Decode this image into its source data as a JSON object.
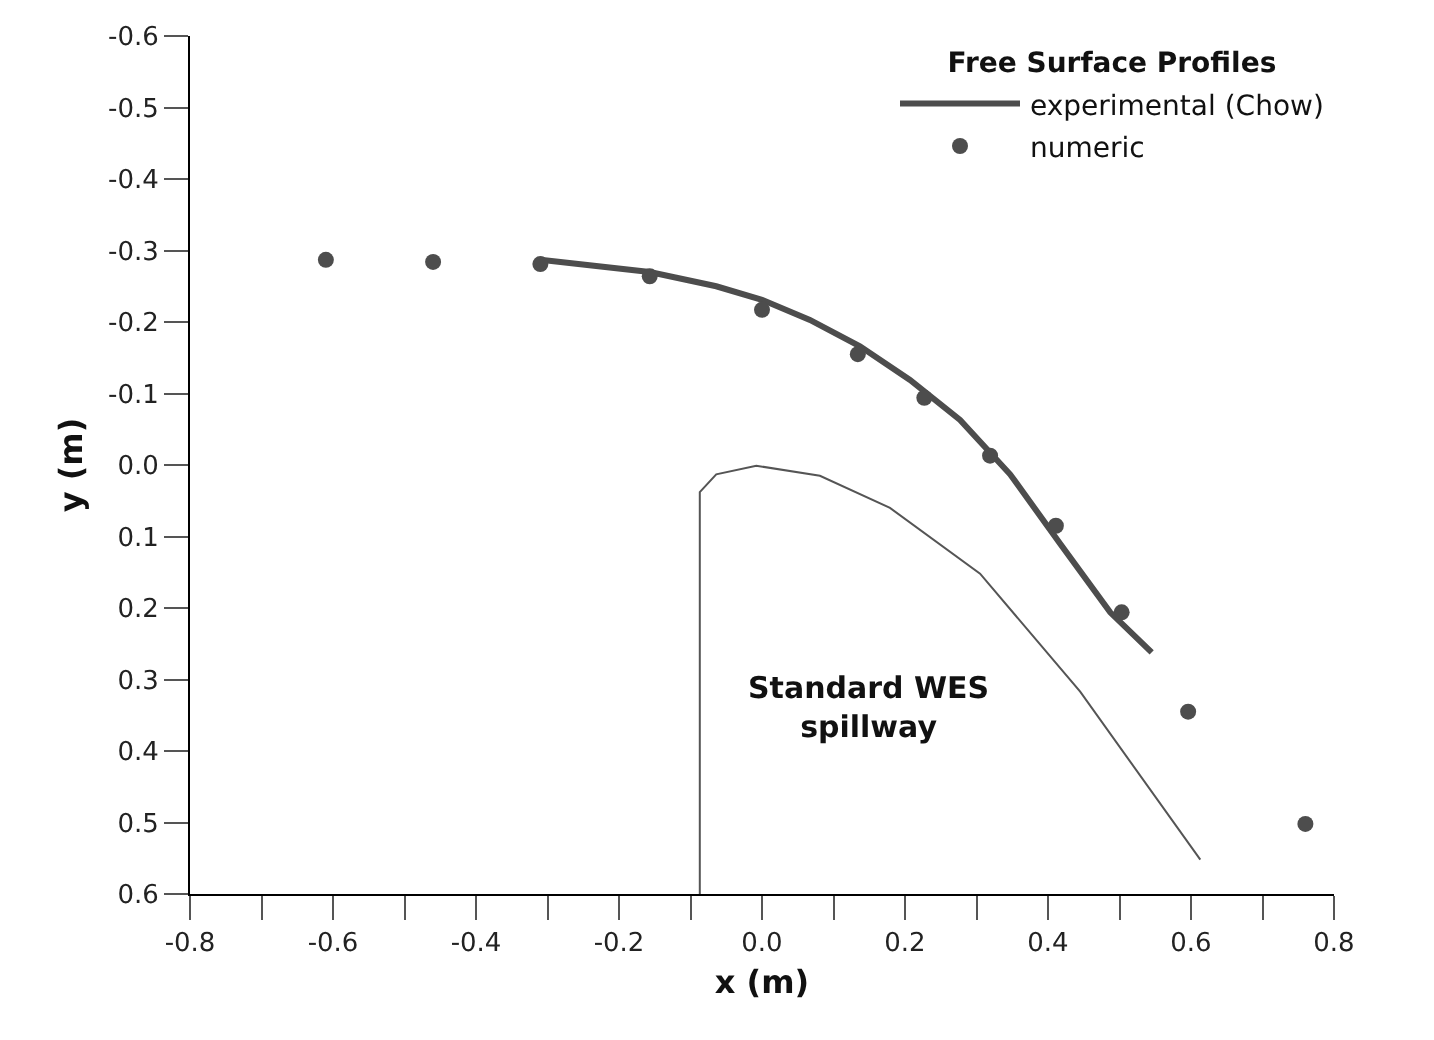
{
  "chart_data": {
    "type": "line",
    "xlabel": "x (m)",
    "ylabel": "y (m)",
    "legend_title": "Free Surface Profiles",
    "legend": "top right",
    "grid": false,
    "xlim": [
      -0.8,
      0.8
    ],
    "xticks": [
      -0.8,
      {
        "value": -0.7,
        "label": null
      },
      -0.6,
      {
        "value": -0.5,
        "label": null
      },
      -0.4,
      {
        "value": -0.3,
        "label": null
      },
      -0.2,
      {
        "value": -0.1,
        "label": null
      },
      {
        "value": 0,
        "label": "0.0"
      },
      {
        "value": 0.1,
        "label": null
      },
      0.2,
      {
        "value": 0.3,
        "label": null
      },
      0.4,
      {
        "value": 0.5,
        "label": null
      },
      0.6,
      {
        "value": 0.7,
        "label": null
      },
      0.8
    ],
    "ylim": [
      0.6,
      -0.6
    ],
    "yticks": [
      -0.6,
      -0.5,
      -0.4,
      -0.3,
      -0.2,
      -0.1,
      {
        "value": 0,
        "label": "0.0"
      },
      0.1,
      0.2,
      0.3,
      0.4,
      0.5,
      0.6
    ],
    "series": [
      {
        "name": "experimental (Chow)",
        "color": "#4d4d4d",
        "x": [
          -0.31,
          -0.157,
          -0.064,
          0,
          0.067,
          0.137,
          0.207,
          0.277,
          0.347,
          0.417,
          0.487,
          0.545
        ],
        "values": [
          -0.287,
          -0.27,
          -0.25,
          -0.231,
          -0.203,
          -0.166,
          -0.119,
          -0.063,
          0.013,
          0.11,
          0.206,
          0.262
        ]
      },
      {
        "name": "numeric",
        "type": "scatter",
        "color": "#4d4d4d",
        "marker": "circle",
        "x": [
          -0.61,
          -0.46,
          -0.31,
          -0.157,
          0,
          0.134,
          0.227,
          0.319,
          0.411,
          0.503,
          0.596,
          0.76
        ],
        "values": [
          -0.287,
          -0.284,
          -0.281,
          -0.264,
          -0.217,
          -0.155,
          -0.094,
          -0.013,
          0.085,
          0.206,
          0.345,
          0.502
        ]
      },
      {
        "color": "#555555",
        "x": [
          -0.087,
          -0.087,
          -0.064,
          -0.008,
          0.081,
          0.179,
          0.305,
          0.445,
          0.613
        ],
        "values": [
          0.6,
          0.038,
          0.013,
          0.001,
          0.015,
          0.06,
          0.152,
          0.317,
          0.552
        ]
      }
    ],
    "annotations": [
      "Standard WES\nspillway"
    ]
  }
}
